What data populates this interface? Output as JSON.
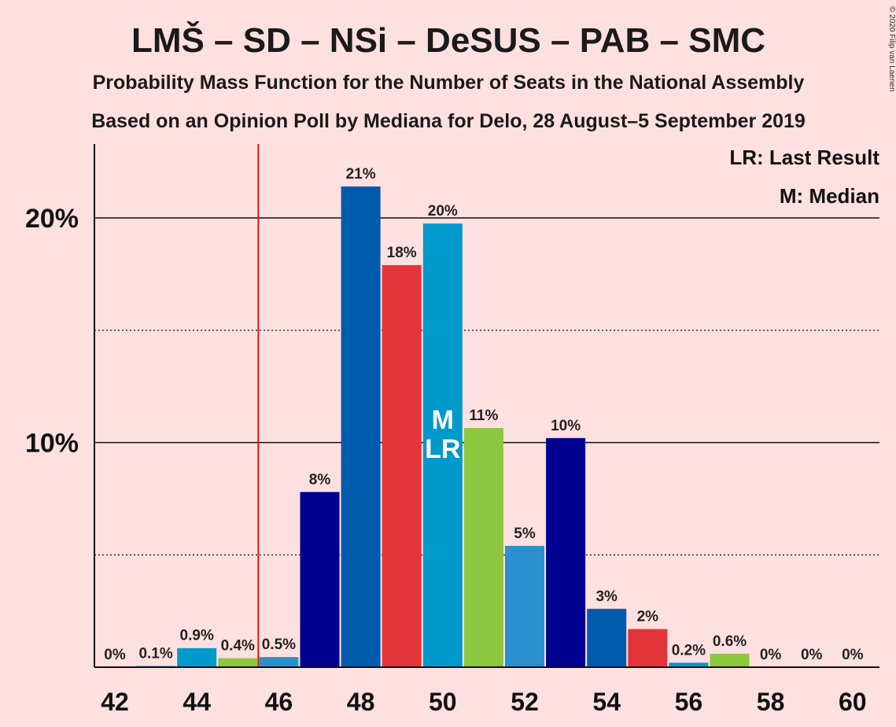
{
  "header": {
    "title": "LMŠ – SD – NSi – DeSUS – PAB – SMC",
    "subtitle1": "Probability Mass Function for the Number of Seats in the National Assembly",
    "subtitle2": "Based on an Opinion Poll by Mediana for Delo, 28 August–5 September 2019",
    "copyright": "© 2020 Filip van Laenen"
  },
  "legend": {
    "lr": "LR: Last Result",
    "m": "M: Median"
  },
  "markers": {
    "median_label": "M",
    "last_result_label": "LR",
    "median_seat": 50,
    "last_result_seat": 50,
    "majority_line_seat": 45.5
  },
  "colors": {
    "background": "#ffe0e0",
    "majority_line": "#e8141a",
    "navy": "#000090",
    "blue": "#005bac",
    "red": "#e3343a",
    "cyan": "#0099cc",
    "green": "#8dc63f",
    "lightblue": "#2b90d0"
  },
  "chart_data": {
    "type": "bar",
    "xlabel": "",
    "ylabel": "",
    "ylim": [
      0,
      23.4
    ],
    "grid": true,
    "legend_position": "top-right",
    "x_ticks": [
      "42",
      "44",
      "46",
      "48",
      "50",
      "52",
      "54",
      "56",
      "58",
      "60"
    ],
    "y_ticks": [
      {
        "value": 10,
        "label": "10%"
      },
      {
        "value": 20,
        "label": "20%"
      }
    ],
    "minor_y_gridlines": [
      5,
      15
    ],
    "bars": [
      {
        "seat": 42,
        "value": 0,
        "label": "0%",
        "color": "#000090"
      },
      {
        "seat": 43,
        "value": 0.05,
        "label": "0.1%",
        "color": "#005bac"
      },
      {
        "seat": 44,
        "value": 0.85,
        "label": "0.9%",
        "color": "#0099cc"
      },
      {
        "seat": 45,
        "value": 0.4,
        "label": "0.4%",
        "color": "#8dc63f"
      },
      {
        "seat": 46,
        "value": 0.45,
        "label": "0.5%",
        "color": "#2b90d0"
      },
      {
        "seat": 47,
        "value": 7.8,
        "label": "8%",
        "color": "#000090"
      },
      {
        "seat": 48,
        "value": 21.4,
        "label": "21%",
        "color": "#005bac"
      },
      {
        "seat": 49,
        "value": 17.9,
        "label": "18%",
        "color": "#e3343a"
      },
      {
        "seat": 50,
        "value": 19.75,
        "label": "20%",
        "color": "#0099cc"
      },
      {
        "seat": 51,
        "value": 10.65,
        "label": "11%",
        "color": "#8dc63f"
      },
      {
        "seat": 52,
        "value": 5.4,
        "label": "5%",
        "color": "#2b90d0"
      },
      {
        "seat": 53,
        "value": 10.2,
        "label": "10%",
        "color": "#000090"
      },
      {
        "seat": 54,
        "value": 2.6,
        "label": "3%",
        "color": "#005bac"
      },
      {
        "seat": 55,
        "value": 1.7,
        "label": "2%",
        "color": "#e3343a"
      },
      {
        "seat": 56,
        "value": 0.2,
        "label": "0.2%",
        "color": "#0099cc"
      },
      {
        "seat": 57,
        "value": 0.6,
        "label": "0.6%",
        "color": "#8dc63f"
      },
      {
        "seat": 58,
        "value": 0,
        "label": "0%",
        "color": "#2b90d0"
      },
      {
        "seat": 59,
        "value": 0,
        "label": "0%",
        "color": "#000090"
      },
      {
        "seat": 60,
        "value": 0,
        "label": "0%",
        "color": "#005bac"
      }
    ]
  }
}
